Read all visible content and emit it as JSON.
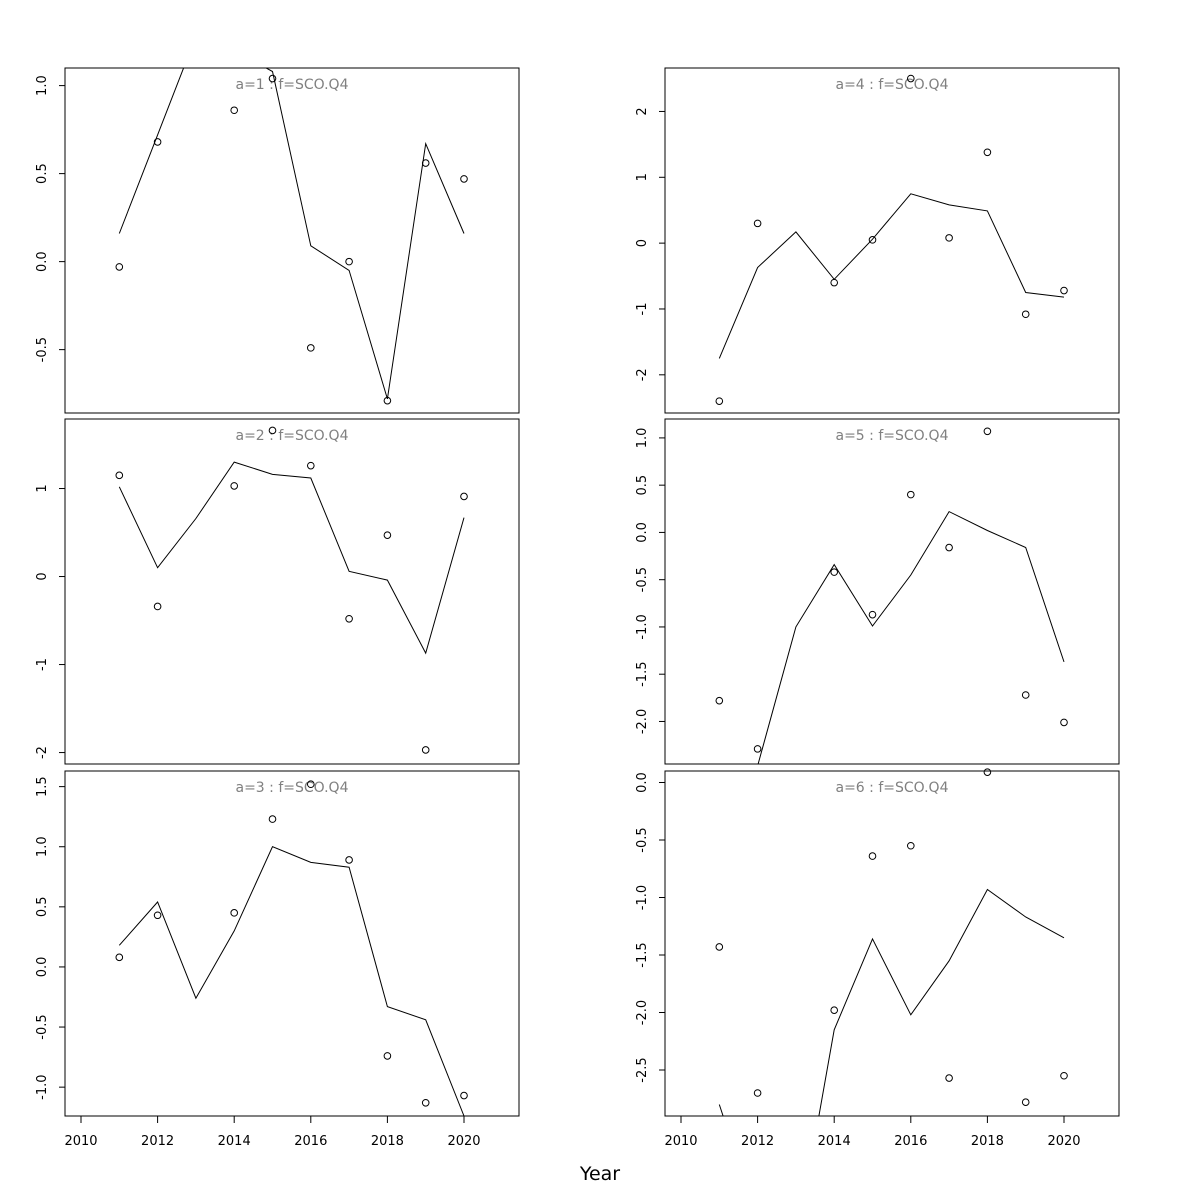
{
  "chart_data": {
    "type": "line",
    "xlabel": "Year",
    "x_ticks": [
      2010,
      2012,
      2014,
      2016,
      2018,
      2020
    ],
    "colors": {
      "points": "#000000",
      "line": "#000000",
      "panel_title": "#808080"
    },
    "panels": [
      {
        "title": "a=1  :  f=SCO.Q4",
        "ylim": [
          -0.86,
          1.1
        ],
        "yticks": [
          {
            "v": -0.5,
            "label": "-0.5"
          },
          {
            "v": 0,
            "label": "0.0"
          },
          {
            "v": 0.5,
            "label": "0.5"
          },
          {
            "v": 1,
            "label": "1.0"
          }
        ],
        "points": [
          [
            2011,
            -0.03
          ],
          [
            2012,
            0.68
          ],
          [
            2014,
            0.86
          ],
          [
            2015,
            1.04
          ],
          [
            2016,
            -0.49
          ],
          [
            2017,
            0.0
          ],
          [
            2018,
            -0.79
          ],
          [
            2019,
            0.56
          ],
          [
            2020,
            0.47
          ]
        ],
        "line": [
          [
            2011,
            0.16
          ],
          [
            2012,
            0.72
          ],
          [
            2013,
            1.28
          ],
          [
            2014,
            1.2
          ],
          [
            2015,
            1.08
          ],
          [
            2016,
            0.09
          ],
          [
            2017,
            -0.05
          ],
          [
            2018,
            -0.78
          ],
          [
            2019,
            0.67
          ],
          [
            2020,
            0.16
          ]
        ]
      },
      {
        "title": "a=2  :  f=SCO.Q4",
        "ylim": [
          -2.13,
          1.79
        ],
        "yticks": [
          {
            "v": -2,
            "label": "-2"
          },
          {
            "v": -1,
            "label": "-1"
          },
          {
            "v": 0,
            "label": "0"
          },
          {
            "v": 1,
            "label": "1"
          }
        ],
        "points": [
          [
            2011,
            1.15
          ],
          [
            2012,
            -0.34
          ],
          [
            2014,
            1.03
          ],
          [
            2015,
            1.66
          ],
          [
            2016,
            1.26
          ],
          [
            2017,
            -0.48
          ],
          [
            2018,
            0.47
          ],
          [
            2019,
            -1.97
          ],
          [
            2020,
            0.91
          ]
        ],
        "line": [
          [
            2011,
            1.02
          ],
          [
            2012,
            0.1
          ],
          [
            2013,
            0.66
          ],
          [
            2014,
            1.3
          ],
          [
            2015,
            1.16
          ],
          [
            2016,
            1.12
          ],
          [
            2017,
            0.06
          ],
          [
            2018,
            -0.04
          ],
          [
            2019,
            -0.87
          ],
          [
            2020,
            0.67
          ]
        ]
      },
      {
        "title": "a=3  :  f=SCO.Q4",
        "ylim": [
          -1.24,
          1.63
        ],
        "yticks": [
          {
            "v": -1,
            "label": "-1.0"
          },
          {
            "v": -0.5,
            "label": "-0.5"
          },
          {
            "v": 0,
            "label": "0.0"
          },
          {
            "v": 0.5,
            "label": "0.5"
          },
          {
            "v": 1,
            "label": "1.0"
          },
          {
            "v": 1.5,
            "label": "1.5"
          }
        ],
        "points": [
          [
            2011,
            0.08
          ],
          [
            2012,
            0.43
          ],
          [
            2014,
            0.45
          ],
          [
            2015,
            1.23
          ],
          [
            2016,
            1.52
          ],
          [
            2017,
            0.89
          ],
          [
            2018,
            -0.74
          ],
          [
            2019,
            -1.13
          ],
          [
            2020,
            -1.07
          ]
        ],
        "line": [
          [
            2011,
            0.18
          ],
          [
            2012,
            0.54
          ],
          [
            2013,
            -0.26
          ],
          [
            2014,
            0.3
          ],
          [
            2015,
            1.0
          ],
          [
            2016,
            0.87
          ],
          [
            2017,
            0.83
          ],
          [
            2018,
            -0.33
          ],
          [
            2019,
            -0.44
          ],
          [
            2020,
            -1.24
          ]
        ]
      },
      {
        "title": "a=4  :  f=SCO.Q4",
        "ylim": [
          -2.58,
          2.66
        ],
        "yticks": [
          {
            "v": -2,
            "label": "-2"
          },
          {
            "v": -1,
            "label": "-1"
          },
          {
            "v": 0,
            "label": "0"
          },
          {
            "v": 1,
            "label": "1"
          },
          {
            "v": 2,
            "label": "2"
          }
        ],
        "points": [
          [
            2011,
            -2.4
          ],
          [
            2012,
            0.3
          ],
          [
            2014,
            -0.6
          ],
          [
            2015,
            0.05
          ],
          [
            2016,
            2.5
          ],
          [
            2017,
            0.08
          ],
          [
            2018,
            1.38
          ],
          [
            2019,
            -1.08
          ],
          [
            2020,
            -0.72
          ]
        ],
        "line": [
          [
            2011,
            -1.75
          ],
          [
            2012,
            -0.37
          ],
          [
            2013,
            0.17
          ],
          [
            2014,
            -0.55
          ],
          [
            2015,
            0.06
          ],
          [
            2016,
            0.75
          ],
          [
            2017,
            0.58
          ],
          [
            2018,
            0.49
          ],
          [
            2019,
            -0.75
          ],
          [
            2020,
            -0.82
          ]
        ]
      },
      {
        "title": "a=5  :  f=SCO.Q4",
        "ylim": [
          -2.45,
          1.2
        ],
        "yticks": [
          {
            "v": -2,
            "label": "-2.0"
          },
          {
            "v": -1.5,
            "label": "-1.5"
          },
          {
            "v": -1,
            "label": "-1.0"
          },
          {
            "v": -0.5,
            "label": "-0.5"
          },
          {
            "v": 0,
            "label": "0.0"
          },
          {
            "v": 0.5,
            "label": "0.5"
          },
          {
            "v": 1,
            "label": "1.0"
          }
        ],
        "points": [
          [
            2011,
            -1.78
          ],
          [
            2012,
            -2.29
          ],
          [
            2014,
            -0.42
          ],
          [
            2015,
            -0.87
          ],
          [
            2016,
            0.4
          ],
          [
            2017,
            -0.16
          ],
          [
            2018,
            1.07
          ],
          [
            2019,
            -1.72
          ],
          [
            2020,
            -2.01
          ]
        ],
        "line": [
          [
            2012,
            -2.47
          ],
          [
            2013,
            -1.0
          ],
          [
            2014,
            -0.34
          ],
          [
            2015,
            -0.99
          ],
          [
            2016,
            -0.45
          ],
          [
            2017,
            0.22
          ],
          [
            2018,
            0.02
          ],
          [
            2019,
            -0.16
          ],
          [
            2020,
            -1.37
          ]
        ]
      },
      {
        "title": "a=6  :  f=SCO.Q4",
        "ylim": [
          -2.9,
          0.1
        ],
        "yticks": [
          {
            "v": -2.5,
            "label": "-2.5"
          },
          {
            "v": -2,
            "label": "-2.0"
          },
          {
            "v": -1.5,
            "label": "-1.5"
          },
          {
            "v": -1,
            "label": "-1.0"
          },
          {
            "v": -0.5,
            "label": "-0.5"
          },
          {
            "v": 0,
            "label": "0.0"
          }
        ],
        "points": [
          [
            2011,
            -1.43
          ],
          [
            2012,
            -2.7
          ],
          [
            2014,
            -1.98
          ],
          [
            2015,
            -0.64
          ],
          [
            2016,
            -0.55
          ],
          [
            2017,
            -2.57
          ],
          [
            2018,
            0.09
          ],
          [
            2019,
            -2.78
          ],
          [
            2020,
            -2.55
          ]
        ],
        "line": [
          [
            2011,
            -2.8
          ],
          [
            2011.1,
            -2.9
          ],
          [
            2013.6,
            -2.9
          ],
          [
            2014,
            -2.15
          ],
          [
            2015,
            -1.36
          ],
          [
            2016,
            -2.02
          ],
          [
            2017,
            -1.55
          ],
          [
            2018,
            -0.93
          ],
          [
            2019,
            -1.17
          ],
          [
            2020,
            -1.35
          ]
        ]
      }
    ]
  }
}
